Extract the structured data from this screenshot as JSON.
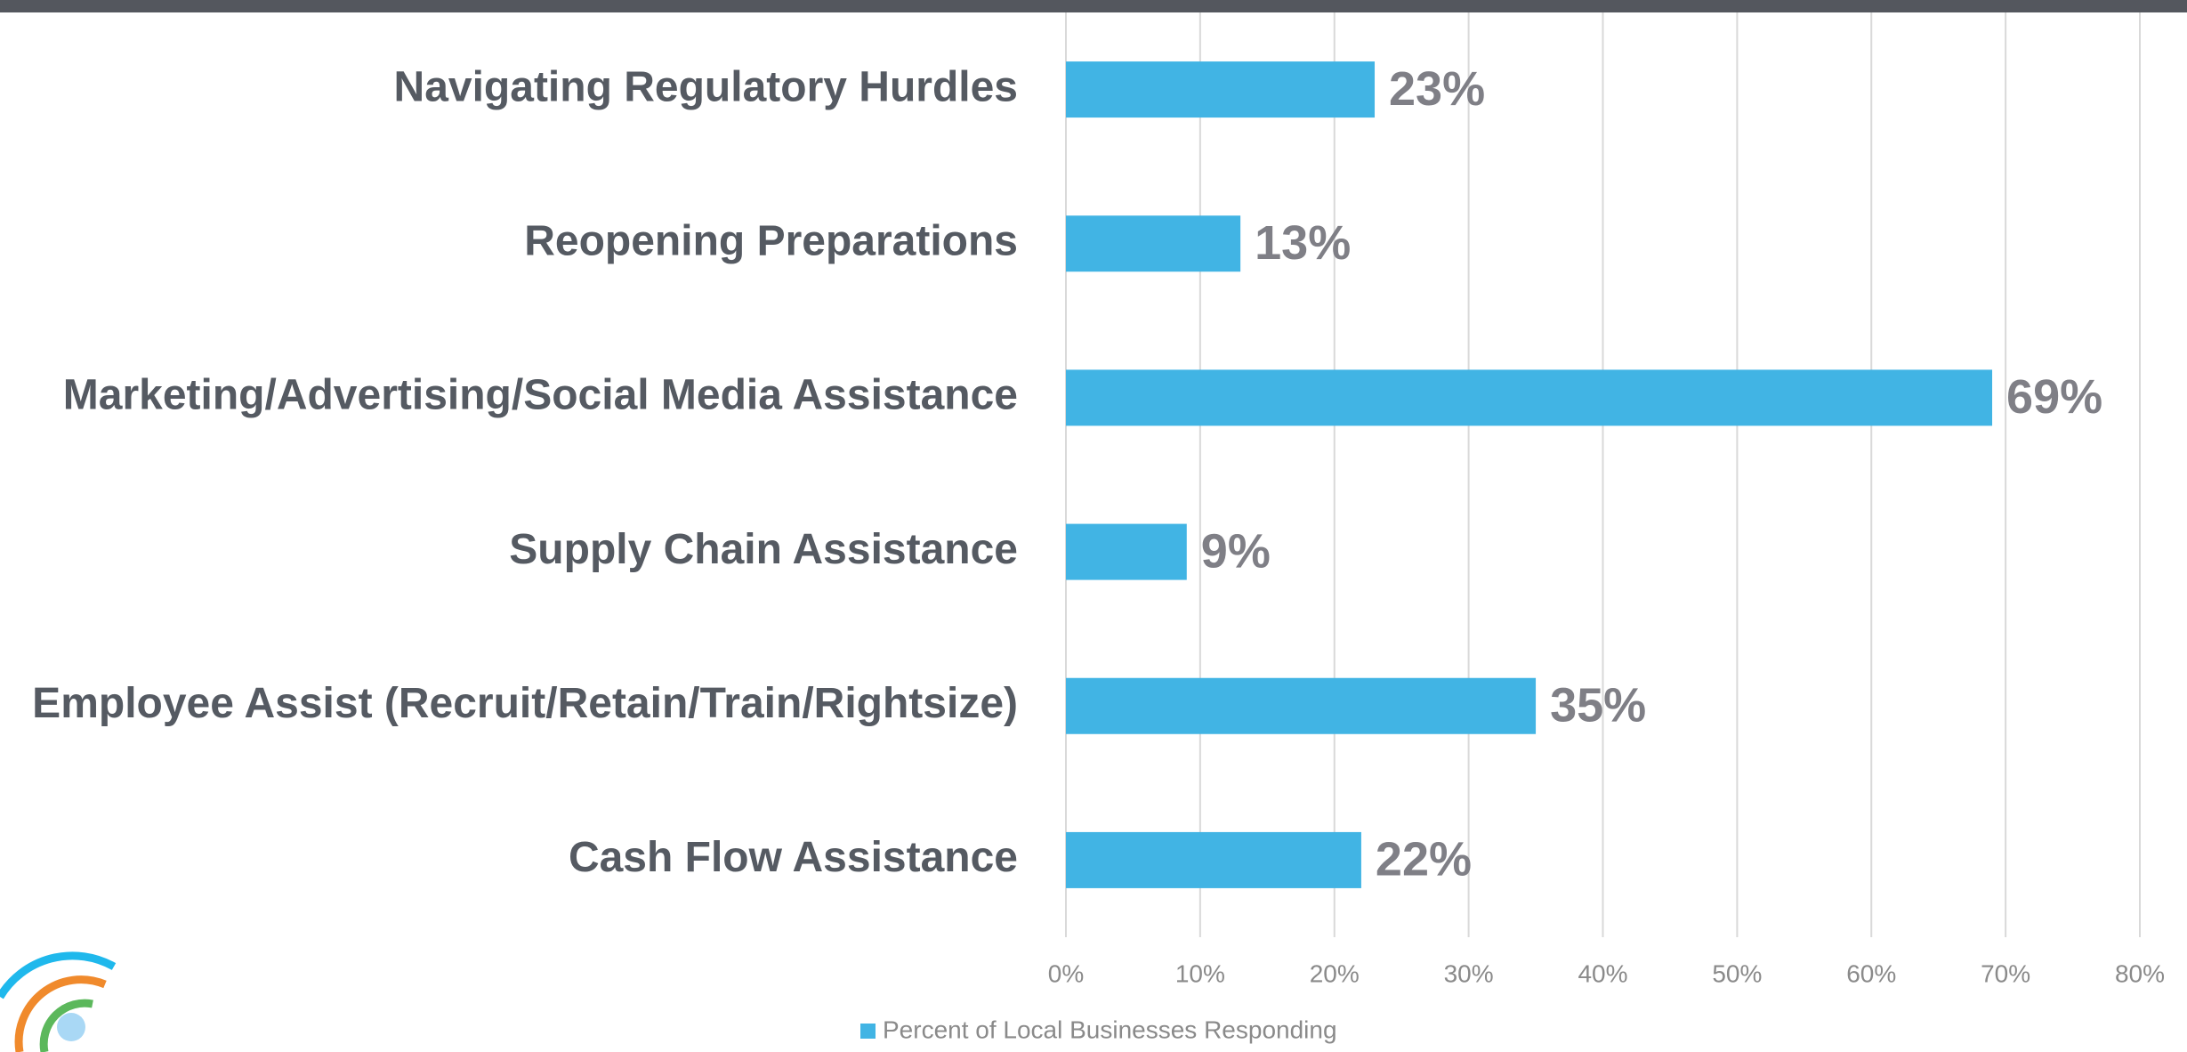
{
  "chart_data": {
    "type": "bar",
    "orientation": "horizontal",
    "categories": [
      "Navigating Regulatory Hurdles",
      "Reopening Preparations",
      "Marketing/Advertising/Social Media Assistance",
      "Supply Chain Assistance",
      "Employee Assist (Recruit/Retain/Train/Rightsize)",
      "Cash Flow Assistance"
    ],
    "series": [
      {
        "name": "Percent of Local Businesses Responding",
        "color": "#41b4e4",
        "values": [
          23,
          13,
          69,
          9,
          35,
          22
        ],
        "value_labels": [
          "23%",
          "13%",
          "69%",
          "9%",
          "35%",
          "22%"
        ]
      }
    ],
    "xlim": [
      0,
      80
    ],
    "xticks": [
      {
        "value": 0,
        "label": "0%"
      },
      {
        "value": 10,
        "label": "10%"
      },
      {
        "value": 20,
        "label": "20%"
      },
      {
        "value": 30,
        "label": "30%"
      },
      {
        "value": 40,
        "label": "40%"
      },
      {
        "value": 50,
        "label": "50%"
      },
      {
        "value": 60,
        "label": "60%"
      },
      {
        "value": 70,
        "label": "70%"
      },
      {
        "value": 80,
        "label": "80%"
      }
    ],
    "grid": true,
    "legend": "bottom"
  }
}
